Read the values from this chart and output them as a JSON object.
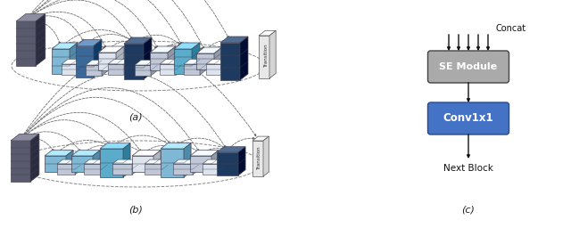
{
  "fig_width": 6.4,
  "fig_height": 2.56,
  "dpi": 100,
  "background": "#ffffff",
  "panel_a_label": "(a)",
  "panel_b_label": "(b)",
  "panel_c_label": "(c)",
  "se_module_color": "#aaaaaa",
  "conv1x1_color": "#4472c4",
  "se_text": "SE Module",
  "conv_text": "Conv1x1",
  "concat_text": "Concat",
  "nextblock_text": "Next Block",
  "transition_text": "Transition",
  "arrow_color": "#777777",
  "ellipse_color": "#888888",
  "block_edge_color": "#444455"
}
